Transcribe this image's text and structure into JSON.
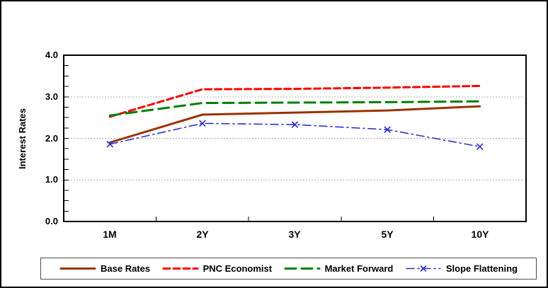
{
  "figure": {
    "background": "#FFFFFF",
    "border_color": "#000000"
  },
  "chart_data": {
    "type": "line",
    "title": "",
    "xlabel": "",
    "ylabel": "Interest Rates",
    "categories": [
      "1M",
      "2Y",
      "3Y",
      "5Y",
      "10Y"
    ],
    "ylim": [
      0.0,
      4.0
    ],
    "ytick_labels": [
      "0.0",
      "1.0",
      "2.0",
      "3.0",
      "4.0"
    ],
    "ytick_values": [
      0,
      1,
      2,
      3,
      4
    ],
    "minor_tick_step": 0.25,
    "grid": true,
    "grid_values": [
      1.0,
      2.0,
      3.0
    ],
    "grid_color": "#ADADAD",
    "axis_color": "#000000",
    "legend_position": "bottom",
    "series": [
      {
        "name": "Base Rates",
        "color": "#993300",
        "style": "solid",
        "marker": "none",
        "line_width": 3,
        "values": [
          1.9,
          2.57,
          2.62,
          2.67,
          2.77
        ]
      },
      {
        "name": "PNC Economist",
        "color": "#FF0000",
        "style": "dashed",
        "marker": "none",
        "line_width": 3,
        "values": [
          2.52,
          3.18,
          3.19,
          3.22,
          3.26
        ]
      },
      {
        "name": "Market Forward",
        "color": "#008000",
        "style": "long-dash",
        "marker": "none",
        "line_width": 3,
        "values": [
          2.55,
          2.85,
          2.86,
          2.87,
          2.89
        ]
      },
      {
        "name": "Slope Flattening",
        "color": "#3333CC",
        "style": "dash-dot",
        "marker": "x",
        "line_width": 1.6,
        "values": [
          1.86,
          2.36,
          2.33,
          2.21,
          1.8
        ]
      }
    ]
  }
}
